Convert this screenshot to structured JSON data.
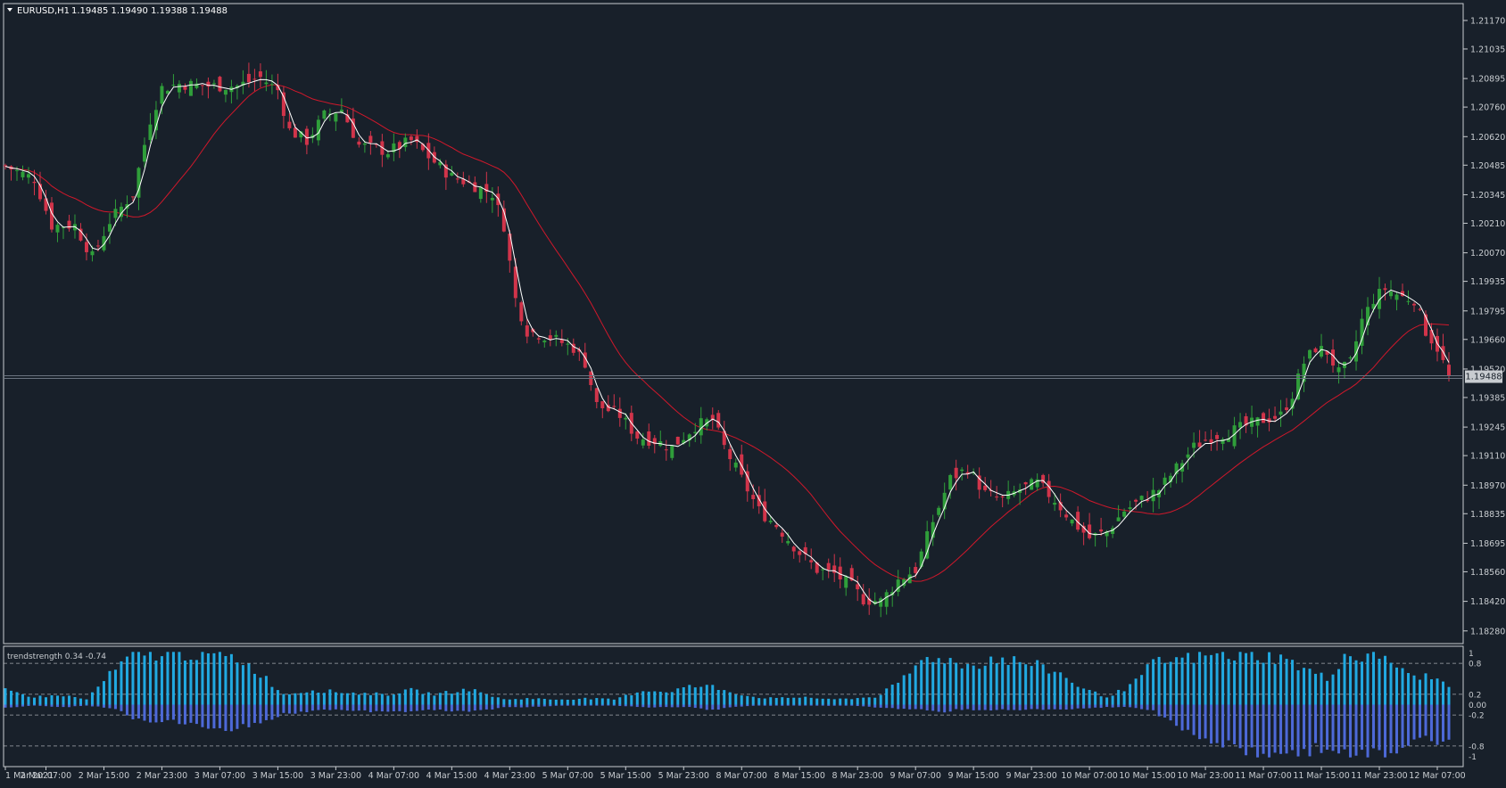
{
  "window": {
    "symbol_label": "EURUSD,H1",
    "ohlc_label": "1.19485 1.19490 1.19388 1.19488"
  },
  "colors": {
    "background": "#18202a",
    "frame": "#c8ccd0",
    "axis_text": "#c8ccd0",
    "bull_candle": "#2f9e3a",
    "bear_candle": "#d1344a",
    "fast_ma": "#ffffff",
    "slow_ma": "#d0182b",
    "price_line": "#6b7480",
    "hist_positive": "#21a9e1",
    "hist_negative": "#4d69d8",
    "level_line": "#c8ccd0"
  },
  "chart_data": [
    {
      "type": "candlestick",
      "title": "EURUSD,H1",
      "ylim": [
        1.1822,
        1.2125
      ],
      "price_ticks": [
        "1.21170",
        "1.21035",
        "1.20895",
        "1.20760",
        "1.20620",
        "1.20485",
        "1.20345",
        "1.20210",
        "1.20070",
        "1.19935",
        "1.19795",
        "1.19660",
        "1.19520",
        "1.19385",
        "1.19245",
        "1.19110",
        "1.18970",
        "1.18835",
        "1.18695",
        "1.18560",
        "1.18420",
        "1.18280"
      ],
      "current_price": "1.19488",
      "x_ticks": [
        "1 Mar 2021",
        "2 Mar 07:00",
        "2 Mar 15:00",
        "2 Mar 23:00",
        "3 Mar 07:00",
        "3 Mar 15:00",
        "3 Mar 23:00",
        "4 Mar 07:00",
        "4 Mar 15:00",
        "4 Mar 23:00",
        "5 Mar 07:00",
        "5 Mar 15:00",
        "5 Mar 23:00",
        "8 Mar 07:00",
        "8 Mar 15:00",
        "8 Mar 23:00",
        "9 Mar 07:00",
        "9 Mar 15:00",
        "9 Mar 23:00",
        "10 Mar 07:00",
        "10 Mar 15:00",
        "10 Mar 23:00",
        "11 Mar 07:00",
        "11 Mar 15:00",
        "11 Mar 23:00",
        "12 Mar 07:00"
      ],
      "close_anchors": [
        [
          0,
          1.2048
        ],
        [
          5,
          1.2042
        ],
        [
          8,
          1.202
        ],
        [
          12,
          1.202
        ],
        [
          15,
          1.2005
        ],
        [
          18,
          1.2022
        ],
        [
          22,
          1.2035
        ],
        [
          25,
          1.207
        ],
        [
          27,
          1.2085
        ],
        [
          30,
          1.2087
        ],
        [
          35,
          1.2086
        ],
        [
          40,
          1.2086
        ],
        [
          44,
          1.209
        ],
        [
          47,
          1.2084
        ],
        [
          49,
          1.2065
        ],
        [
          52,
          1.206
        ],
        [
          55,
          1.2072
        ],
        [
          58,
          1.2075
        ],
        [
          61,
          1.2058
        ],
        [
          66,
          1.2055
        ],
        [
          70,
          1.206
        ],
        [
          74,
          1.205
        ],
        [
          77,
          1.2043
        ],
        [
          80,
          1.204
        ],
        [
          84,
          1.2035
        ],
        [
          86,
          1.202
        ],
        [
          88,
          1.1985
        ],
        [
          90,
          1.197
        ],
        [
          94,
          1.1967
        ],
        [
          98,
          1.1962
        ],
        [
          100,
          1.1955
        ],
        [
          102,
          1.1935
        ],
        [
          106,
          1.193
        ],
        [
          109,
          1.192
        ],
        [
          112,
          1.1918
        ],
        [
          115,
          1.1915
        ],
        [
          119,
          1.1925
        ],
        [
          122,
          1.1928
        ],
        [
          124,
          1.1915
        ],
        [
          127,
          1.19
        ],
        [
          130,
          1.1885
        ],
        [
          133,
          1.1878
        ],
        [
          137,
          1.1865
        ],
        [
          140,
          1.1857
        ],
        [
          143,
          1.1855
        ],
        [
          146,
          1.1849
        ],
        [
          148,
          1.1843
        ],
        [
          151,
          1.1842
        ],
        [
          154,
          1.1852
        ],
        [
          157,
          1.1857
        ],
        [
          160,
          1.188
        ],
        [
          163,
          1.19
        ],
        [
          166,
          1.1905
        ],
        [
          169,
          1.1893
        ],
        [
          172,
          1.189
        ],
        [
          175,
          1.1895
        ],
        [
          178,
          1.1898
        ],
        [
          181,
          1.189
        ],
        [
          184,
          1.188
        ],
        [
          187,
          1.1872
        ],
        [
          190,
          1.1875
        ],
        [
          193,
          1.1885
        ],
        [
          196,
          1.189
        ],
        [
          199,
          1.1895
        ],
        [
          202,
          1.1905
        ],
        [
          205,
          1.1915
        ],
        [
          208,
          1.192
        ],
        [
          211,
          1.1922
        ],
        [
          214,
          1.1925
        ],
        [
          217,
          1.1928
        ],
        [
          220,
          1.193
        ],
        [
          222,
          1.194
        ],
        [
          224,
          1.1955
        ],
        [
          226,
          1.1962
        ],
        [
          228,
          1.196
        ],
        [
          230,
          1.195
        ],
        [
          232,
          1.1955
        ],
        [
          234,
          1.1975
        ],
        [
          236,
          1.1985
        ],
        [
          238,
          1.199
        ],
        [
          241,
          1.1986
        ],
        [
          243,
          1.1985
        ],
        [
          245,
          1.197
        ],
        [
          247,
          1.1962
        ],
        [
          249,
          1.1948
        ]
      ],
      "series": [
        {
          "name": "trendstrength",
          "type": "histogram",
          "ylim": [
            -1,
            1
          ],
          "levels": [
            "1",
            "0.8",
            "0.2",
            "0.00",
            "-0.2",
            "-0.8",
            "-1"
          ]
        }
      ],
      "indicator_label": "trendstrength 0.34 -0.74",
      "hist_anchors": [
        [
          0,
          0.28,
          -0.06
        ],
        [
          5,
          0.15,
          -0.02
        ],
        [
          10,
          0.18,
          -0.05
        ],
        [
          14,
          0.1,
          -0.02
        ],
        [
          16,
          0.35,
          -0.04
        ],
        [
          19,
          0.68,
          -0.08
        ],
        [
          22,
          0.95,
          -0.28
        ],
        [
          30,
          1.0,
          -0.35
        ],
        [
          36,
          0.95,
          -0.45
        ],
        [
          40,
          0.9,
          -0.45
        ],
        [
          44,
          0.6,
          -0.35
        ],
        [
          48,
          0.2,
          -0.18
        ],
        [
          53,
          0.28,
          -0.12
        ],
        [
          57,
          0.25,
          -0.1
        ],
        [
          61,
          0.22,
          -0.12
        ],
        [
          66,
          0.2,
          -0.15
        ],
        [
          70,
          0.28,
          -0.12
        ],
        [
          74,
          0.2,
          -0.1
        ],
        [
          77,
          0.25,
          -0.12
        ],
        [
          80,
          0.3,
          -0.15
        ],
        [
          83,
          0.2,
          -0.1
        ],
        [
          86,
          0.1,
          -0.05
        ],
        [
          90,
          0.12,
          -0.05
        ],
        [
          95,
          0.1,
          -0.02
        ],
        [
          100,
          0.12,
          -0.02
        ],
        [
          105,
          0.1,
          -0.02
        ],
        [
          110,
          0.28,
          -0.05
        ],
        [
          114,
          0.25,
          -0.05
        ],
        [
          118,
          0.35,
          -0.05
        ],
        [
          122,
          0.35,
          -0.1
        ],
        [
          125,
          0.25,
          -0.05
        ],
        [
          129,
          0.15,
          -0.02
        ],
        [
          133,
          0.12,
          -0.02
        ],
        [
          138,
          0.15,
          -0.02
        ],
        [
          142,
          0.1,
          -0.02
        ],
        [
          146,
          0.12,
          -0.02
        ],
        [
          150,
          0.15,
          -0.05
        ],
        [
          154,
          0.4,
          -0.08
        ],
        [
          158,
          0.85,
          -0.1
        ],
        [
          161,
          0.95,
          -0.15
        ],
        [
          164,
          0.8,
          -0.1
        ],
        [
          167,
          0.75,
          -0.1
        ],
        [
          170,
          0.9,
          -0.1
        ],
        [
          174,
          0.85,
          -0.1
        ],
        [
          178,
          0.75,
          -0.1
        ],
        [
          182,
          0.6,
          -0.1
        ],
        [
          186,
          0.3,
          -0.08
        ],
        [
          190,
          0.15,
          -0.05
        ],
        [
          194,
          0.35,
          -0.05
        ],
        [
          198,
          0.8,
          -0.12
        ],
        [
          201,
          0.85,
          -0.35
        ],
        [
          204,
          0.9,
          -0.5
        ],
        [
          208,
          0.95,
          -0.7
        ],
        [
          212,
          0.95,
          -0.85
        ],
        [
          216,
          0.95,
          -0.95
        ],
        [
          220,
          0.9,
          -1.0
        ],
        [
          224,
          0.7,
          -0.9
        ],
        [
          228,
          0.5,
          -0.8
        ],
        [
          231,
          0.95,
          -1.0
        ],
        [
          235,
          0.9,
          -1.0
        ],
        [
          238,
          0.95,
          -0.95
        ],
        [
          242,
          0.55,
          -0.8
        ],
        [
          245,
          0.55,
          -0.7
        ],
        [
          249,
          0.4,
          -0.7
        ]
      ]
    }
  ]
}
